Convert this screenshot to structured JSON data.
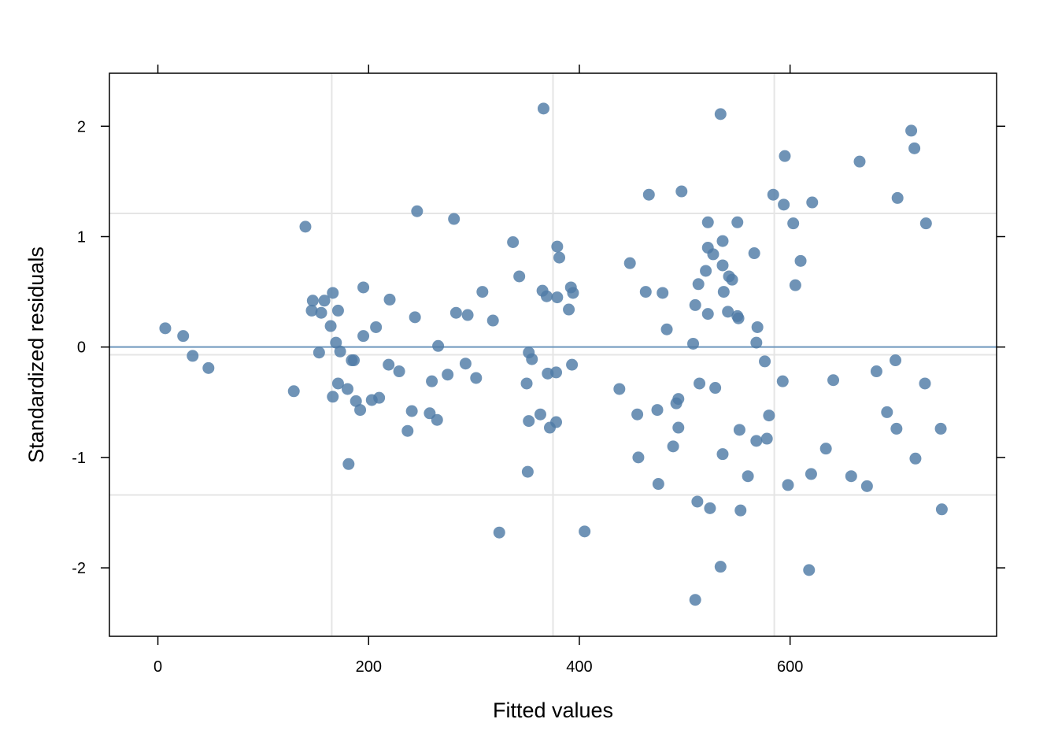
{
  "chart_data": {
    "type": "scatter",
    "title": "",
    "xlabel": "Fitted values",
    "ylabel": "Standardized residuals",
    "xlim": [
      -46,
      796
    ],
    "ylim": [
      -2.62,
      2.48
    ],
    "x_ticks": [
      0,
      200,
      400,
      600
    ],
    "y_ticks": [
      -2,
      -1,
      0,
      1,
      2
    ],
    "x_tick_labels": [
      "0",
      "200",
      "400",
      "600"
    ],
    "y_tick_labels": [
      "-2",
      "-1",
      "0",
      "1",
      "2"
    ],
    "grid": true,
    "x_grid": [
      165,
      375,
      585
    ],
    "y_grid": [
      -1.34,
      1.21
    ],
    "reference_line": 0,
    "smooth_line": -0.07,
    "point_color": "#4F7BA6",
    "line_color": "#6E96BC",
    "grid_color": "#e5e5e5",
    "points": [
      {
        "x": 7,
        "y": 0.17
      },
      {
        "x": 24,
        "y": 0.1
      },
      {
        "x": 33,
        "y": -0.08
      },
      {
        "x": 48,
        "y": -0.19
      },
      {
        "x": 129,
        "y": -0.4
      },
      {
        "x": 140,
        "y": 1.09
      },
      {
        "x": 146,
        "y": 0.33
      },
      {
        "x": 147,
        "y": 0.42
      },
      {
        "x": 153,
        "y": -0.05
      },
      {
        "x": 155,
        "y": 0.31
      },
      {
        "x": 158,
        "y": 0.42
      },
      {
        "x": 164,
        "y": 0.19
      },
      {
        "x": 166,
        "y": 0.49
      },
      {
        "x": 166,
        "y": -0.45
      },
      {
        "x": 169,
        "y": 0.04
      },
      {
        "x": 171,
        "y": 0.33
      },
      {
        "x": 171,
        "y": -0.33
      },
      {
        "x": 173,
        "y": -0.04
      },
      {
        "x": 180,
        "y": -0.38
      },
      {
        "x": 181,
        "y": -1.06
      },
      {
        "x": 184,
        "y": -0.12
      },
      {
        "x": 186,
        "y": -0.12
      },
      {
        "x": 188,
        "y": -0.49
      },
      {
        "x": 192,
        "y": -0.57
      },
      {
        "x": 195,
        "y": 0.1
      },
      {
        "x": 195,
        "y": 0.54
      },
      {
        "x": 203,
        "y": -0.48
      },
      {
        "x": 207,
        "y": 0.18
      },
      {
        "x": 210,
        "y": -0.46
      },
      {
        "x": 219,
        "y": -0.16
      },
      {
        "x": 220,
        "y": 0.43
      },
      {
        "x": 229,
        "y": -0.22
      },
      {
        "x": 237,
        "y": -0.76
      },
      {
        "x": 241,
        "y": -0.58
      },
      {
        "x": 244,
        "y": 0.27
      },
      {
        "x": 246,
        "y": 1.23
      },
      {
        "x": 258,
        "y": -0.6
      },
      {
        "x": 260,
        "y": -0.31
      },
      {
        "x": 265,
        "y": -0.66
      },
      {
        "x": 266,
        "y": 0.01
      },
      {
        "x": 275,
        "y": -0.25
      },
      {
        "x": 281,
        "y": 1.16
      },
      {
        "x": 283,
        "y": 0.31
      },
      {
        "x": 292,
        "y": -0.15
      },
      {
        "x": 294,
        "y": 0.29
      },
      {
        "x": 302,
        "y": -0.28
      },
      {
        "x": 308,
        "y": 0.5
      },
      {
        "x": 318,
        "y": 0.24
      },
      {
        "x": 324,
        "y": -1.68
      },
      {
        "x": 337,
        "y": 0.95
      },
      {
        "x": 343,
        "y": 0.64
      },
      {
        "x": 350,
        "y": -0.33
      },
      {
        "x": 351,
        "y": -1.13
      },
      {
        "x": 352,
        "y": -0.05
      },
      {
        "x": 352,
        "y": -0.67
      },
      {
        "x": 355,
        "y": -0.11
      },
      {
        "x": 363,
        "y": -0.61
      },
      {
        "x": 365,
        "y": 0.51
      },
      {
        "x": 366,
        "y": 2.16
      },
      {
        "x": 369,
        "y": 0.46
      },
      {
        "x": 370,
        "y": -0.24
      },
      {
        "x": 372,
        "y": -0.73
      },
      {
        "x": 378,
        "y": -0.68
      },
      {
        "x": 378,
        "y": -0.23
      },
      {
        "x": 379,
        "y": 0.45
      },
      {
        "x": 379,
        "y": 0.91
      },
      {
        "x": 381,
        "y": 0.81
      },
      {
        "x": 390,
        "y": 0.34
      },
      {
        "x": 392,
        "y": 0.54
      },
      {
        "x": 393,
        "y": -0.16
      },
      {
        "x": 394,
        "y": 0.49
      },
      {
        "x": 405,
        "y": -1.67
      },
      {
        "x": 438,
        "y": -0.38
      },
      {
        "x": 448,
        "y": 0.76
      },
      {
        "x": 455,
        "y": -0.61
      },
      {
        "x": 456,
        "y": -1.0
      },
      {
        "x": 463,
        "y": 0.5
      },
      {
        "x": 466,
        "y": 1.38
      },
      {
        "x": 474,
        "y": -0.57
      },
      {
        "x": 475,
        "y": -1.24
      },
      {
        "x": 479,
        "y": 0.49
      },
      {
        "x": 483,
        "y": 0.16
      },
      {
        "x": 489,
        "y": -0.9
      },
      {
        "x": 492,
        "y": -0.51
      },
      {
        "x": 494,
        "y": -0.47
      },
      {
        "x": 494,
        "y": -0.73
      },
      {
        "x": 497,
        "y": 1.41
      },
      {
        "x": 508,
        "y": 0.03
      },
      {
        "x": 510,
        "y": -2.29
      },
      {
        "x": 510,
        "y": 0.38
      },
      {
        "x": 512,
        "y": -1.4
      },
      {
        "x": 513,
        "y": 0.57
      },
      {
        "x": 514,
        "y": -0.33
      },
      {
        "x": 520,
        "y": 0.69
      },
      {
        "x": 522,
        "y": 0.3
      },
      {
        "x": 522,
        "y": 0.9
      },
      {
        "x": 522,
        "y": 1.13
      },
      {
        "x": 524,
        "y": -1.46
      },
      {
        "x": 527,
        "y": 0.84
      },
      {
        "x": 529,
        "y": -0.37
      },
      {
        "x": 534,
        "y": -1.99
      },
      {
        "x": 534,
        "y": 2.11
      },
      {
        "x": 536,
        "y": 0.96
      },
      {
        "x": 536,
        "y": -0.97
      },
      {
        "x": 536,
        "y": 0.74
      },
      {
        "x": 537,
        "y": 0.5
      },
      {
        "x": 541,
        "y": 0.32
      },
      {
        "x": 542,
        "y": 0.64
      },
      {
        "x": 545,
        "y": 0.61
      },
      {
        "x": 550,
        "y": 0.28
      },
      {
        "x": 550,
        "y": 1.13
      },
      {
        "x": 551,
        "y": 0.26
      },
      {
        "x": 552,
        "y": -0.75
      },
      {
        "x": 553,
        "y": -1.48
      },
      {
        "x": 560,
        "y": -1.17
      },
      {
        "x": 566,
        "y": 0.85
      },
      {
        "x": 568,
        "y": 0.04
      },
      {
        "x": 568,
        "y": -0.85
      },
      {
        "x": 569,
        "y": 0.18
      },
      {
        "x": 576,
        "y": -0.13
      },
      {
        "x": 578,
        "y": -0.83
      },
      {
        "x": 580,
        "y": -0.62
      },
      {
        "x": 584,
        "y": 1.38
      },
      {
        "x": 593,
        "y": -0.31
      },
      {
        "x": 594,
        "y": 1.29
      },
      {
        "x": 595,
        "y": 1.73
      },
      {
        "x": 598,
        "y": -1.25
      },
      {
        "x": 603,
        "y": 1.12
      },
      {
        "x": 605,
        "y": 0.56
      },
      {
        "x": 610,
        "y": 0.78
      },
      {
        "x": 618,
        "y": -2.02
      },
      {
        "x": 620,
        "y": -1.15
      },
      {
        "x": 621,
        "y": 1.31
      },
      {
        "x": 634,
        "y": -0.92
      },
      {
        "x": 641,
        "y": -0.3
      },
      {
        "x": 658,
        "y": -1.17
      },
      {
        "x": 666,
        "y": 1.68
      },
      {
        "x": 673,
        "y": -1.26
      },
      {
        "x": 682,
        "y": -0.22
      },
      {
        "x": 692,
        "y": -0.59
      },
      {
        "x": 700,
        "y": -0.12
      },
      {
        "x": 701,
        "y": -0.74
      },
      {
        "x": 702,
        "y": 1.35
      },
      {
        "x": 715,
        "y": 1.96
      },
      {
        "x": 718,
        "y": 1.8
      },
      {
        "x": 719,
        "y": -1.01
      },
      {
        "x": 728,
        "y": -0.33
      },
      {
        "x": 729,
        "y": 1.12
      },
      {
        "x": 743,
        "y": -0.74
      },
      {
        "x": 744,
        "y": -1.47
      }
    ]
  }
}
